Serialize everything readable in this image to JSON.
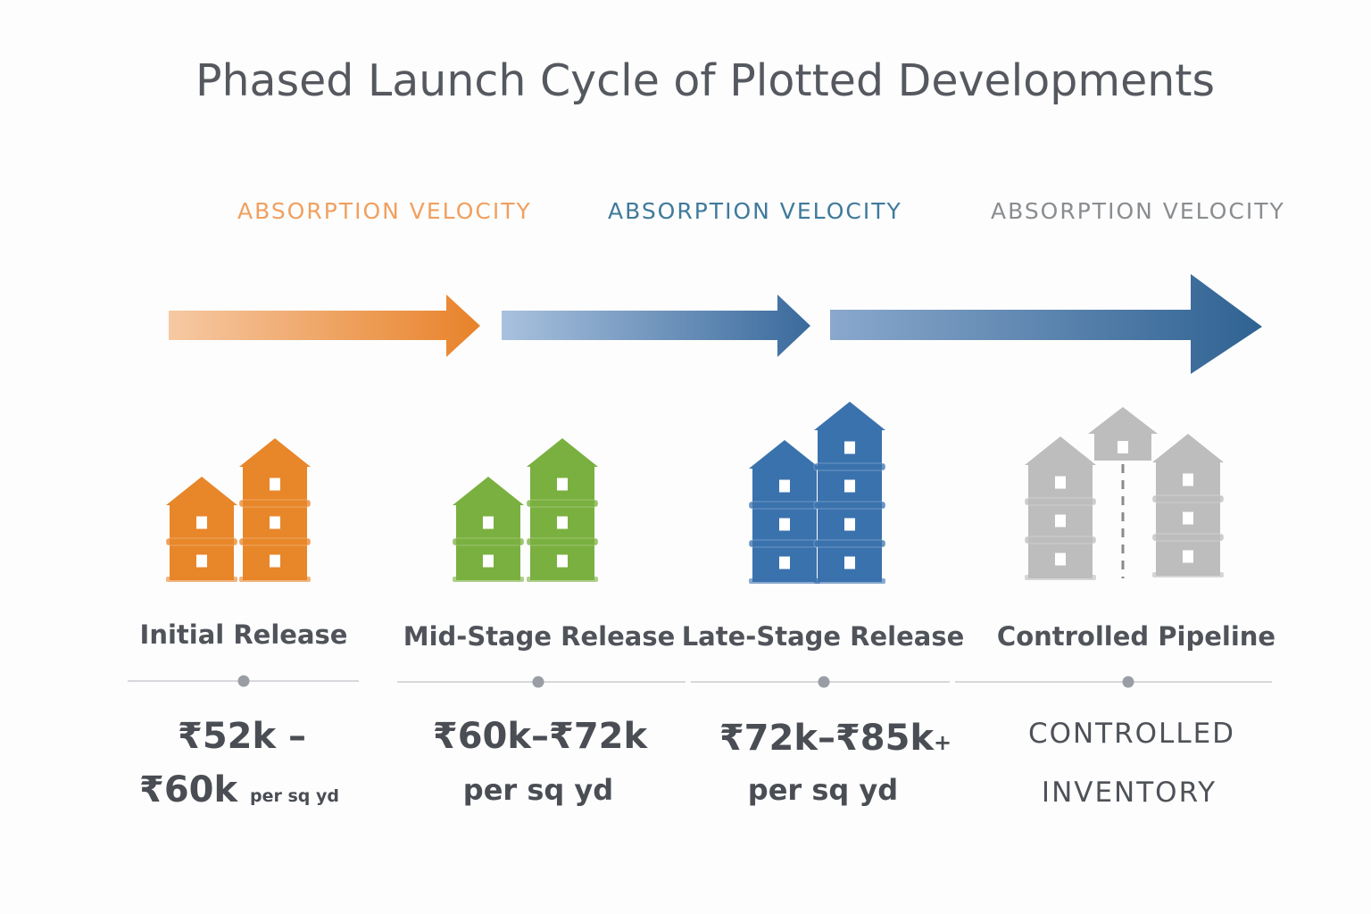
{
  "title": "Phased Launch Cycle of Plotted Developments",
  "velocity_labels": [
    {
      "text": "ABSORPTION VELOCITY",
      "color": "#f0a060"
    },
    {
      "text": "ABSORPTION VELOCITY",
      "color": "#3f7a9c"
    },
    {
      "text": "ABSORPTION VELOCITY",
      "color": "#8a8d90"
    }
  ],
  "stages": [
    {
      "label": "Initial Release",
      "price_line1": "₹52k –",
      "price_line2": "₹60k",
      "unit": "per sq yd",
      "color": "#e8862a"
    },
    {
      "label": "Mid-Stage Release",
      "price_line1": "₹60k–₹72k",
      "unit": "per sq yd",
      "color": "#7ab040"
    },
    {
      "label": "Late-Stage Release",
      "price_line1": "₹72k–₹85k",
      "price_suffix": "+",
      "unit": "per sq yd",
      "color": "#3a72ad"
    },
    {
      "label": "Controlled Pipeline",
      "price_line1": "CONTROLLED",
      "price_line2": "INVENTORY",
      "color": "#bdbdbd"
    }
  ]
}
